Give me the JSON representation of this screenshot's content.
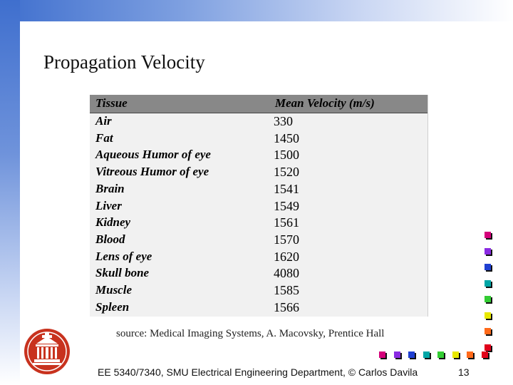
{
  "slide": {
    "title": "Propagation Velocity",
    "source": "source: Medical Imaging Systems, A. Macovsky, Prentice Hall",
    "footer": "EE 5340/7340, SMU Electrical Engineering Department, © Carlos Davila",
    "page_number": "13"
  },
  "table": {
    "headers": [
      "Tissue",
      "Mean Velocity (m/s)"
    ],
    "rows": [
      {
        "tissue": "Air",
        "velocity": "330"
      },
      {
        "tissue": "Fat",
        "velocity": "1450"
      },
      {
        "tissue": "Aqueous Humor of eye",
        "velocity": "1500"
      },
      {
        "tissue": "Vitreous Humor of eye",
        "velocity": "1520"
      },
      {
        "tissue": "Brain",
        "velocity": "1541"
      },
      {
        "tissue": "Liver",
        "velocity": "1549"
      },
      {
        "tissue": "Kidney",
        "velocity": "1561"
      },
      {
        "tissue": "Blood",
        "velocity": "1570"
      },
      {
        "tissue": "Lens of eye",
        "velocity": "1620"
      },
      {
        "tissue": "Skull bone",
        "velocity": "4080"
      },
      {
        "tissue": "Muscle",
        "velocity": "1585"
      },
      {
        "tissue": "Spleen",
        "velocity": "1566"
      }
    ]
  },
  "decor": {
    "seal_icon": "university-seal-icon",
    "seal_color": "#c8321e",
    "vertical_squares": [
      "#d4007a",
      "#8a2be2",
      "#1f3fd1",
      "#00a6a6",
      "#33cc33",
      "#e8e800",
      "#ff6a1a",
      "#e0001a"
    ],
    "horizontal_squares": [
      "#d4007a",
      "#8a2be2",
      "#1f3fd1",
      "#00a6a6",
      "#33cc33",
      "#e8e800",
      "#ff6a1a",
      "#e0001a"
    ]
  }
}
